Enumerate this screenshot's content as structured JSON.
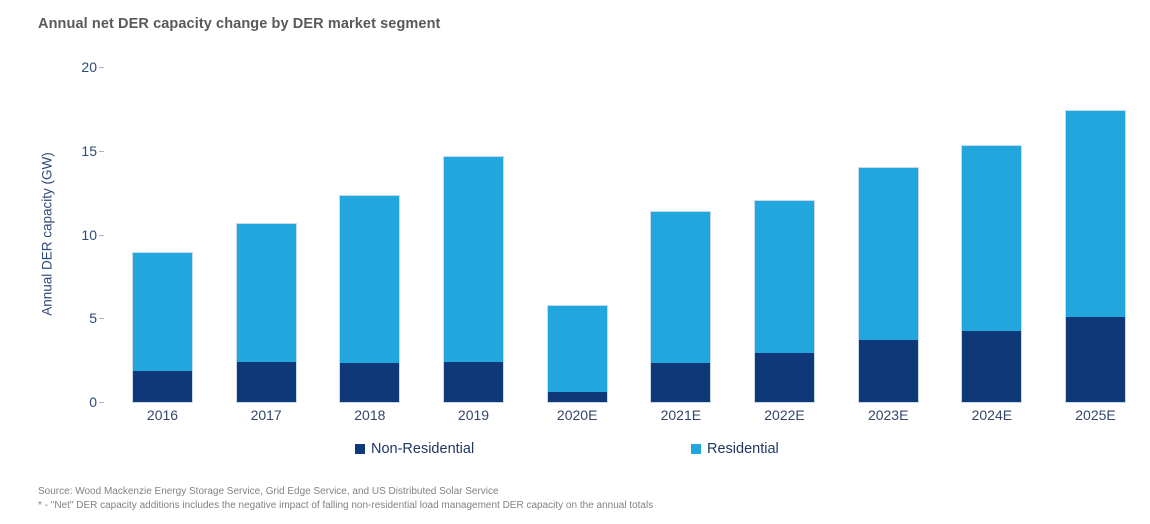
{
  "chart": {
    "title": "Annual net DER capacity change by DER market segment",
    "footer_line1": "Source: Wood Mackenzie Energy Storage Service, Grid Edge Service, and US Distributed Solar Service",
    "footer_line2": "* - \"Net\" DER capacity additions includes the negative impact of falling non-residential load management DER capacity on the annual totals"
  },
  "chart_data": {
    "type": "bar",
    "stacked": true,
    "title": "Annual net DER capacity change by DER market segment",
    "xlabel": "",
    "ylabel": "Annual DER capacity (GW)",
    "ylim": [
      0,
      20
    ],
    "yticks": [
      0,
      5,
      10,
      15,
      20
    ],
    "grid": false,
    "legend_position": "bottom",
    "categories": [
      "2016",
      "2017",
      "2018",
      "2019",
      "2020E",
      "2021E",
      "2022E",
      "2023E",
      "2024E",
      "2025E"
    ],
    "series": [
      {
        "name": "Non-Residential",
        "color": "#0e3877",
        "values": [
          1.85,
          2.4,
          2.3,
          2.4,
          0.6,
          2.3,
          2.95,
          3.7,
          4.25,
          5.1
        ]
      },
      {
        "name": "Residential",
        "color": "#21a6de",
        "values": [
          7.05,
          8.2,
          10.0,
          12.2,
          5.15,
          9.05,
          9.05,
          10.3,
          11.05,
          12.3
        ]
      }
    ],
    "totals": [
      8.9,
      10.6,
      12.3,
      14.6,
      5.75,
      11.35,
      12.0,
      14.0,
      15.3,
      17.4
    ]
  },
  "colors": {
    "title_text": "#58595b",
    "axis_text": "#2e4a77",
    "legend_text": "#1f3864",
    "footer_text": "#808285",
    "bar_border": "#c9d9e8"
  }
}
